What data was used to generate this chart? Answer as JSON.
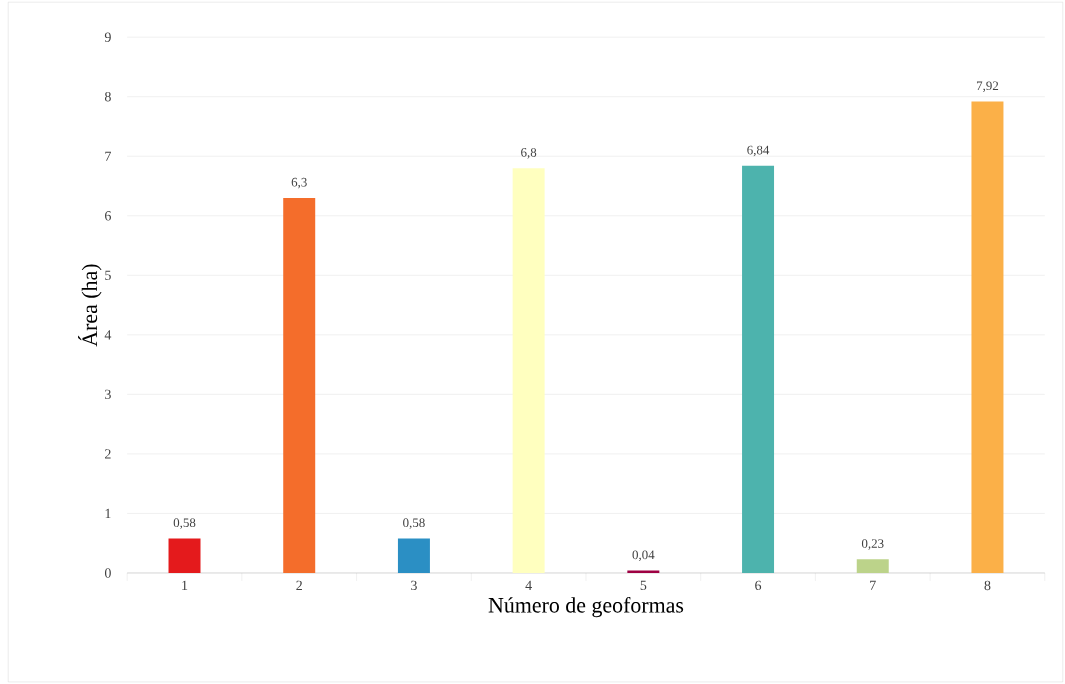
{
  "chart_data": {
    "type": "bar",
    "xlabel": "Número de geoformas",
    "ylabel": "Área (ha)",
    "categories": [
      "1",
      "2",
      "3",
      "4",
      "5",
      "6",
      "7",
      "8"
    ],
    "values": [
      0.58,
      6.3,
      0.58,
      6.8,
      0.04,
      6.84,
      0.23,
      7.92
    ],
    "colors": [
      "#e41a1c",
      "#f46d2b",
      "#2b8fc4",
      "#ffffbf",
      "#9e0142",
      "#4db3ad",
      "#bcd38a",
      "#fbb048"
    ],
    "value_labels": [
      "0,58",
      "6,3",
      "0,58",
      "6,8",
      "0,04",
      "6,84",
      "0,23",
      "7,92"
    ],
    "ylim": [
      0,
      9
    ],
    "yticks": [
      0,
      1,
      2,
      3,
      4,
      5,
      6,
      7,
      8,
      9
    ],
    "grid": "y"
  }
}
